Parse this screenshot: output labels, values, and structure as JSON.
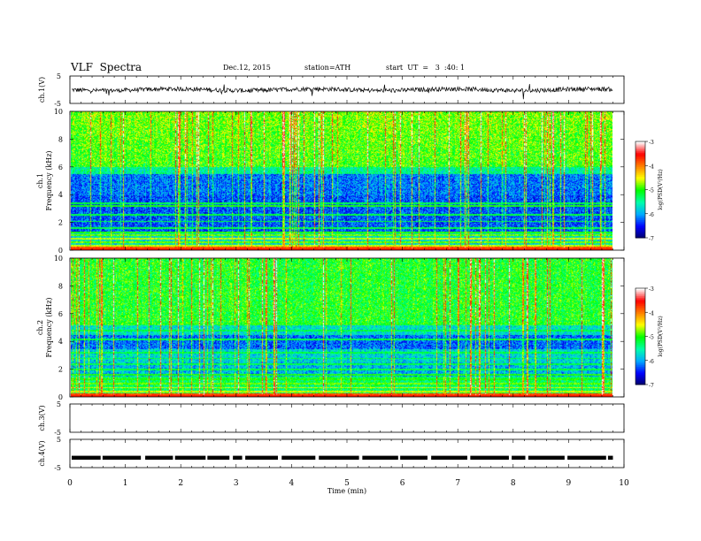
{
  "header": {
    "title": "VLF  Spectra",
    "date": "Dec.12, 2015",
    "station": "station=ATH",
    "start": "start  UT  =   3  :40: 1"
  },
  "chart_data": [
    {
      "type": "line",
      "panel": "ch1",
      "ylabel": "ch.1(V)",
      "ylim": [
        -5,
        5
      ],
      "ytick_labels": [
        "5",
        "-5"
      ],
      "series_description": "noisy waveform near 0 V"
    },
    {
      "type": "heatmap",
      "panel": "spec1",
      "ylabel": "ch.1\nFrequency  (kHz)",
      "ylim": [
        0,
        10
      ],
      "ytick_labels": [
        "0",
        "2",
        "4",
        "6",
        "8",
        "10"
      ],
      "colorbar": {
        "label": "log(PSD(V²/Hz)",
        "range": [
          -7,
          -3
        ],
        "tick_labels": [
          "-3",
          "-4",
          "-5",
          "-6",
          "-7"
        ]
      }
    },
    {
      "type": "heatmap",
      "panel": "spec2",
      "ylabel": "ch.2\nFrequency  (kHz)",
      "ylim": [
        0,
        10
      ],
      "ytick_labels": [
        "0",
        "2",
        "4",
        "6",
        "8",
        "10"
      ],
      "colorbar": {
        "label": "log(PSD(V²/Hz)",
        "range": [
          -7,
          -3
        ],
        "tick_labels": [
          "-3",
          "-4",
          "-5",
          "-6",
          "-7"
        ]
      }
    },
    {
      "type": "line",
      "panel": "ch3",
      "ylabel": "ch.3(V)",
      "ylim": [
        -5,
        5
      ],
      "ytick_labels": [
        "5",
        "-5"
      ]
    },
    {
      "type": "line",
      "panel": "ch4",
      "ylabel": "ch.4(V)",
      "ylim": [
        -5,
        5
      ],
      "ytick_labels": [
        "5",
        "-5"
      ],
      "series_description": "dashed segments near -1.5 V"
    }
  ],
  "xaxis": {
    "label": "Time  (min)",
    "range": [
      0,
      10
    ],
    "data_end": 9.8,
    "tick_labels": [
      "0",
      "1",
      "2",
      "3",
      "4",
      "5",
      "6",
      "7",
      "8",
      "9",
      "10"
    ]
  },
  "colormap": [
    "#000066",
    "#0000ff",
    "#00aaff",
    "#00ffaa",
    "#00ff00",
    "#ffff00",
    "#ff8000",
    "#ff0000",
    "#ffffff"
  ]
}
